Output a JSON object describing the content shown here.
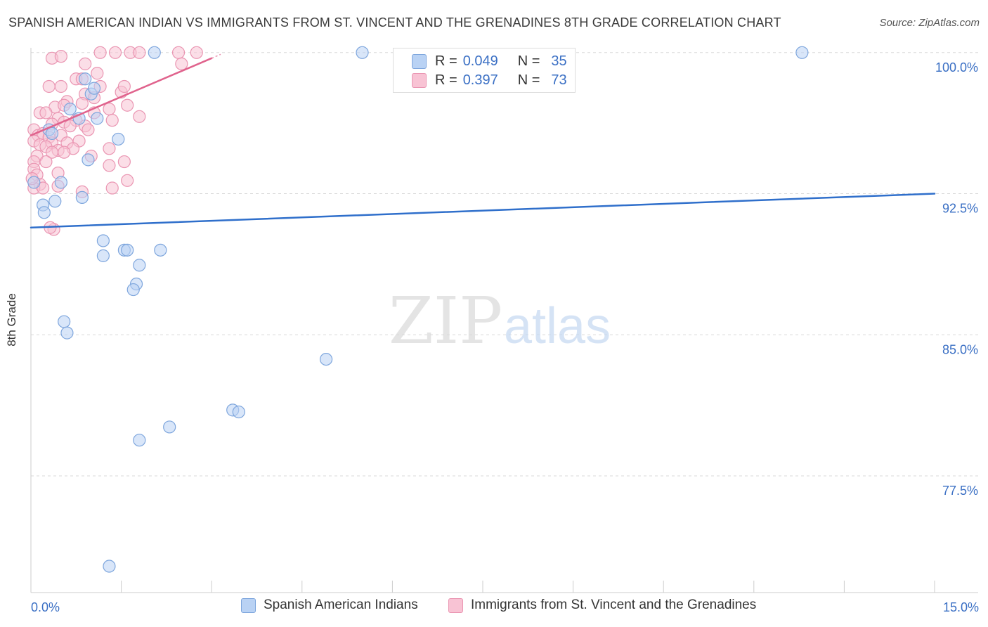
{
  "title": "SPANISH AMERICAN INDIAN VS IMMIGRANTS FROM ST. VINCENT AND THE GRENADINES 8TH GRADE CORRELATION CHART",
  "source": "Source: ZipAtlas.com",
  "watermark": {
    "zip": "ZIP",
    "atlas": "atlas"
  },
  "colors": {
    "blue_fill": "#b9d2f4",
    "blue_stroke": "#7ea6dd",
    "blue_line": "#2f6fcb",
    "pink_fill": "#f8c3d4",
    "pink_stroke": "#ea95b2",
    "pink_line": "#e0638d",
    "tick_label": "#3a6fc4",
    "grid": "#d8d8d8"
  },
  "stats_legend": {
    "rows": [
      {
        "series": "Spanish American Indians",
        "r_label": "R =",
        "r_value": "0.049",
        "n_label": "N =",
        "n_value": "35"
      },
      {
        "series": "Immigrants from St. Vincent and the Grenadines",
        "r_label": "R =",
        "r_value": "0.397",
        "n_label": "N =",
        "n_value": "73"
      }
    ]
  },
  "chart_data": {
    "type": "scatter",
    "title": "SPANISH AMERICAN INDIAN VS IMMIGRANTS FROM ST. VINCENT AND THE GRENADINES 8TH GRADE CORRELATION CHART",
    "xlabel": "",
    "ylabel": "8th Grade",
    "xlim": [
      0,
      15
    ],
    "ylim": [
      71.3,
      101.3
    ],
    "x_tick_labels": [
      "0.0%",
      "15.0%"
    ],
    "y_ticks": [
      {
        "value": 100.0,
        "label": "100.0%"
      },
      {
        "value": 92.5,
        "label": "92.5%"
      },
      {
        "value": 85.0,
        "label": "85.0%"
      },
      {
        "value": 77.5,
        "label": "77.5%"
      }
    ],
    "x_minor_ticks": [
      1.5,
      3.0,
      4.5,
      6.0,
      7.5,
      9.0,
      10.5,
      12.0,
      13.5,
      15.0
    ],
    "legend_position": "bottom",
    "series": [
      {
        "name": "Spanish American Indians",
        "color": "#b9d2f4",
        "trend": {
          "x": [
            0,
            15
          ],
          "y": [
            90.7,
            92.5
          ]
        },
        "points": [
          [
            2.05,
            100.0
          ],
          [
            5.5,
            100.0
          ],
          [
            12.8,
            100.0
          ],
          [
            0.9,
            98.6
          ],
          [
            1.0,
            97.8
          ],
          [
            1.05,
            98.1
          ],
          [
            0.65,
            97.0
          ],
          [
            0.8,
            96.5
          ],
          [
            1.1,
            96.5
          ],
          [
            0.3,
            95.9
          ],
          [
            0.35,
            95.7
          ],
          [
            1.45,
            95.4
          ],
          [
            0.95,
            94.3
          ],
          [
            0.05,
            93.1
          ],
          [
            0.5,
            93.1
          ],
          [
            0.85,
            92.3
          ],
          [
            0.4,
            92.1
          ],
          [
            0.2,
            91.9
          ],
          [
            0.22,
            91.5
          ],
          [
            1.2,
            90.0
          ],
          [
            1.55,
            89.5
          ],
          [
            1.6,
            89.5
          ],
          [
            2.15,
            89.5
          ],
          [
            1.2,
            89.2
          ],
          [
            1.8,
            88.7
          ],
          [
            1.75,
            87.7
          ],
          [
            1.7,
            87.4
          ],
          [
            0.55,
            85.7
          ],
          [
            0.6,
            85.1
          ],
          [
            4.9,
            83.7
          ],
          [
            3.35,
            81.0
          ],
          [
            3.45,
            80.9
          ],
          [
            2.3,
            80.1
          ],
          [
            1.8,
            79.4
          ],
          [
            1.3,
            72.7
          ]
        ]
      },
      {
        "name": "Immigrants from St. Vincent and the Grenadines",
        "color": "#f8c3d4",
        "trend": {
          "x": [
            0,
            3.0
          ],
          "y": [
            95.6,
            99.7
          ]
        },
        "points": [
          [
            0.35,
            99.7
          ],
          [
            0.5,
            99.8
          ],
          [
            1.15,
            100.0
          ],
          [
            1.4,
            100.0
          ],
          [
            1.65,
            100.0
          ],
          [
            1.8,
            100.0
          ],
          [
            2.45,
            100.0
          ],
          [
            2.75,
            100.0
          ],
          [
            2.5,
            99.4
          ],
          [
            0.9,
            99.4
          ],
          [
            1.1,
            98.9
          ],
          [
            0.75,
            98.6
          ],
          [
            0.85,
            98.6
          ],
          [
            1.15,
            98.2
          ],
          [
            0.5,
            98.2
          ],
          [
            0.3,
            98.2
          ],
          [
            0.9,
            97.8
          ],
          [
            1.5,
            97.9
          ],
          [
            1.55,
            98.2
          ],
          [
            1.05,
            97.6
          ],
          [
            0.6,
            97.4
          ],
          [
            0.4,
            97.1
          ],
          [
            0.55,
            97.2
          ],
          [
            0.85,
            97.3
          ],
          [
            1.05,
            96.8
          ],
          [
            1.3,
            97.0
          ],
          [
            1.6,
            97.2
          ],
          [
            0.15,
            96.8
          ],
          [
            0.25,
            96.8
          ],
          [
            0.45,
            96.5
          ],
          [
            0.75,
            96.4
          ],
          [
            1.35,
            96.4
          ],
          [
            1.8,
            96.6
          ],
          [
            0.35,
            96.2
          ],
          [
            0.55,
            96.3
          ],
          [
            0.65,
            96.1
          ],
          [
            0.9,
            96.1
          ],
          [
            0.05,
            95.9
          ],
          [
            0.12,
            95.6
          ],
          [
            0.2,
            95.7
          ],
          [
            0.3,
            95.5
          ],
          [
            0.5,
            95.6
          ],
          [
            0.95,
            95.9
          ],
          [
            0.05,
            95.3
          ],
          [
            0.15,
            95.1
          ],
          [
            0.35,
            95.2
          ],
          [
            0.6,
            95.2
          ],
          [
            0.8,
            95.3
          ],
          [
            0.25,
            95.0
          ],
          [
            0.45,
            94.8
          ],
          [
            0.7,
            94.9
          ],
          [
            1.3,
            94.9
          ],
          [
            0.1,
            94.5
          ],
          [
            0.35,
            94.7
          ],
          [
            0.55,
            94.7
          ],
          [
            1.0,
            94.5
          ],
          [
            0.05,
            94.2
          ],
          [
            0.25,
            94.2
          ],
          [
            1.3,
            94.0
          ],
          [
            1.55,
            94.2
          ],
          [
            0.05,
            93.8
          ],
          [
            0.1,
            93.5
          ],
          [
            0.45,
            93.6
          ],
          [
            1.6,
            93.2
          ],
          [
            0.15,
            93.0
          ],
          [
            0.05,
            92.8
          ],
          [
            0.2,
            92.8
          ],
          [
            0.45,
            92.9
          ],
          [
            0.85,
            92.6
          ],
          [
            1.35,
            92.8
          ],
          [
            0.38,
            90.6
          ],
          [
            0.32,
            90.7
          ],
          [
            0.02,
            93.3
          ]
        ]
      }
    ]
  },
  "bottom_legend": [
    {
      "label": "Spanish American Indians"
    },
    {
      "label": "Immigrants from St. Vincent and the Grenadines"
    }
  ]
}
